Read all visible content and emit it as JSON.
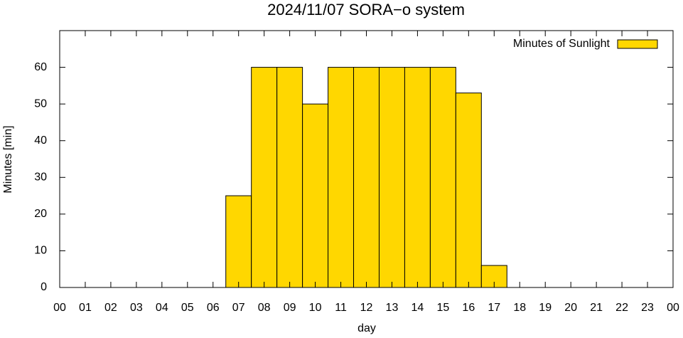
{
  "chart_data": {
    "type": "bar",
    "title": "2024/11/07 SORA−o system",
    "x_label": "day",
    "y_label": "Minutes [min]",
    "x": [
      0,
      1,
      2,
      3,
      4,
      5,
      6,
      7,
      8,
      9,
      10,
      11,
      12,
      13,
      14,
      15,
      16,
      17,
      18,
      19,
      20,
      21,
      22,
      23
    ],
    "series": [
      {
        "name": "Minutes of Sunlight",
        "color": "#ffd700",
        "values": [
          0,
          0,
          0,
          0,
          0,
          0,
          0,
          25,
          60,
          60,
          50,
          60,
          60,
          60,
          60,
          60,
          53,
          6,
          0,
          0,
          0,
          0,
          0,
          0
        ]
      }
    ],
    "xlim": [
      0,
      24
    ],
    "xticks": [
      {
        "value": 0,
        "label": "00"
      },
      {
        "value": 1,
        "label": "01"
      },
      {
        "value": 2,
        "label": "02"
      },
      {
        "value": 3,
        "label": "03"
      },
      {
        "value": 4,
        "label": "04"
      },
      {
        "value": 5,
        "label": "05"
      },
      {
        "value": 6,
        "label": "06"
      },
      {
        "value": 7,
        "label": "07"
      },
      {
        "value": 8,
        "label": "08"
      },
      {
        "value": 9,
        "label": "09"
      },
      {
        "value": 10,
        "label": "10"
      },
      {
        "value": 11,
        "label": "11"
      },
      {
        "value": 12,
        "label": "12"
      },
      {
        "value": 13,
        "label": "13"
      },
      {
        "value": 14,
        "label": "14"
      },
      {
        "value": 15,
        "label": "15"
      },
      {
        "value": 16,
        "label": "16"
      },
      {
        "value": 17,
        "label": "17"
      },
      {
        "value": 18,
        "label": "18"
      },
      {
        "value": 19,
        "label": "19"
      },
      {
        "value": 20,
        "label": "20"
      },
      {
        "value": 21,
        "label": "21"
      },
      {
        "value": 22,
        "label": "22"
      },
      {
        "value": 23,
        "label": "23"
      },
      {
        "value": 24,
        "label": "00"
      }
    ],
    "ylim": [
      0,
      70
    ],
    "yticks": [
      0,
      10,
      20,
      30,
      40,
      50,
      60
    ],
    "legend_position": "top-right"
  }
}
